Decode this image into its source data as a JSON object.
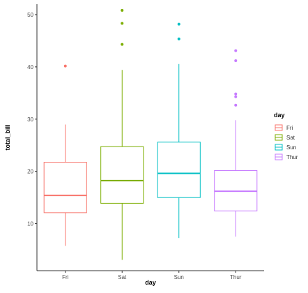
{
  "chart_data": {
    "type": "boxplot",
    "title": "",
    "xlabel": "day",
    "ylabel": "total_bill",
    "categories": [
      "Fri",
      "Sat",
      "Sun",
      "Thur"
    ],
    "ylim": [
      1,
      52
    ],
    "yticks": [
      10,
      20,
      30,
      40,
      50
    ],
    "grid": false,
    "legend": {
      "title": "day",
      "position": "right"
    },
    "series": [
      {
        "name": "Fri",
        "color": "#F8766D",
        "whisker_low": 5.75,
        "q1": 12.1,
        "median": 15.4,
        "q3": 21.75,
        "whisker_high": 28.97,
        "outliers": [
          40.17
        ]
      },
      {
        "name": "Sat",
        "color": "#7CAE00",
        "whisker_low": 3.07,
        "q1": 13.9,
        "median": 18.24,
        "q3": 24.74,
        "whisker_high": 39.42,
        "outliers": [
          44.3,
          48.33,
          50.81
        ]
      },
      {
        "name": "Sun",
        "color": "#00BFC4",
        "whisker_low": 7.25,
        "q1": 14.99,
        "median": 19.63,
        "q3": 25.6,
        "whisker_high": 40.55,
        "outliers": [
          45.35,
          48.17
        ]
      },
      {
        "name": "Thur",
        "color": "#C77CFF",
        "whisker_low": 7.51,
        "q1": 12.44,
        "median": 16.2,
        "q3": 20.16,
        "whisker_high": 29.8,
        "outliers": [
          32.68,
          34.3,
          34.83,
          41.19,
          43.11
        ]
      }
    ]
  }
}
